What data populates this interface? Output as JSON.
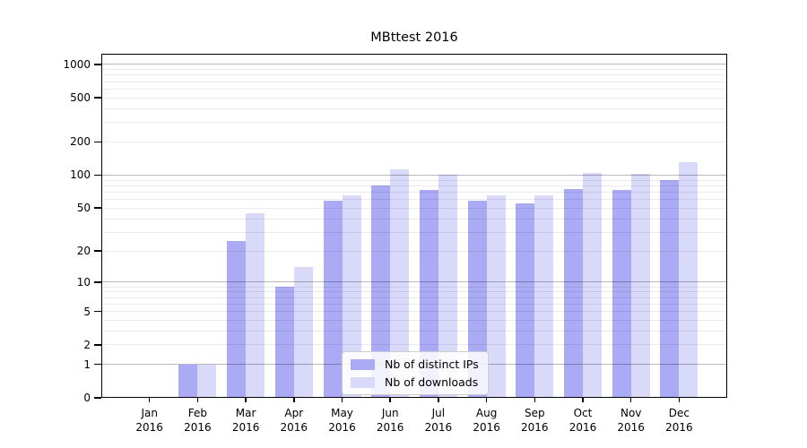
{
  "figure": {
    "title": "MBttest 2016"
  },
  "chart_data": {
    "type": "bar",
    "title": "MBttest 2016",
    "x_axis": {
      "categories": [
        "Jan",
        "Feb",
        "Mar",
        "Apr",
        "May",
        "Jun",
        "Jul",
        "Aug",
        "Sep",
        "Oct",
        "Nov",
        "Dec"
      ],
      "year": "2016"
    },
    "y_axis": {
      "scale": "log1p",
      "ticks": [
        0,
        1,
        2,
        5,
        10,
        20,
        50,
        100,
        200,
        500,
        1000
      ]
    },
    "series": [
      {
        "name": "Nb of distinct IPs",
        "color": "#aaaaf5",
        "values": [
          0,
          1,
          25,
          9,
          58,
          80,
          74,
          58,
          55,
          75,
          74,
          91
        ]
      },
      {
        "name": "Nb of downloads",
        "color": "#d9d9fa",
        "values": [
          0,
          1,
          45,
          14,
          65,
          112,
          101,
          65,
          66,
          105,
          102,
          130
        ]
      }
    ],
    "grid": true,
    "legend_position": "lower center"
  }
}
